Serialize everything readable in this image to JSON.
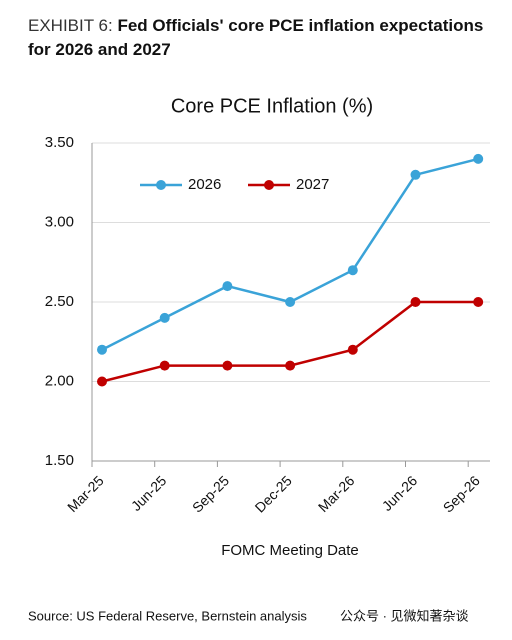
{
  "exhibit": "EXHIBIT 6:",
  "headline": "Fed Officials' core PCE inflation expectations for 2026 and 2027",
  "chart_data": {
    "type": "line",
    "title": "Core PCE Inflation (%)",
    "x_label": "FOMC Meeting Date",
    "categories": [
      "Mar-25",
      "Jun-25",
      "Sep-25",
      "Dec-25",
      "Mar-26",
      "Jun-26",
      "Sep-26"
    ],
    "series": [
      {
        "name": "2026",
        "color": "#3aa3d8",
        "values": [
          2.2,
          2.4,
          2.6,
          2.5,
          2.7,
          3.3,
          3.4
        ]
      },
      {
        "name": "2027",
        "color": "#c00000",
        "values": [
          2.0,
          2.1,
          2.1,
          2.1,
          2.2,
          2.5,
          2.5
        ]
      }
    ],
    "ylim": [
      1.5,
      3.5
    ],
    "yticks": [
      {
        "value": 1.5,
        "label": "1.50"
      },
      {
        "value": 2,
        "label": "2.00"
      },
      {
        "value": 2.5,
        "label": "2.50"
      },
      {
        "value": 3,
        "label": "3.00"
      },
      {
        "value": 3.5,
        "label": "3.50"
      }
    ],
    "grid": true
  },
  "source": "Source: US Federal Reserve, Bernstein analysis",
  "watermark": "公众号 · 见微知著杂谈"
}
